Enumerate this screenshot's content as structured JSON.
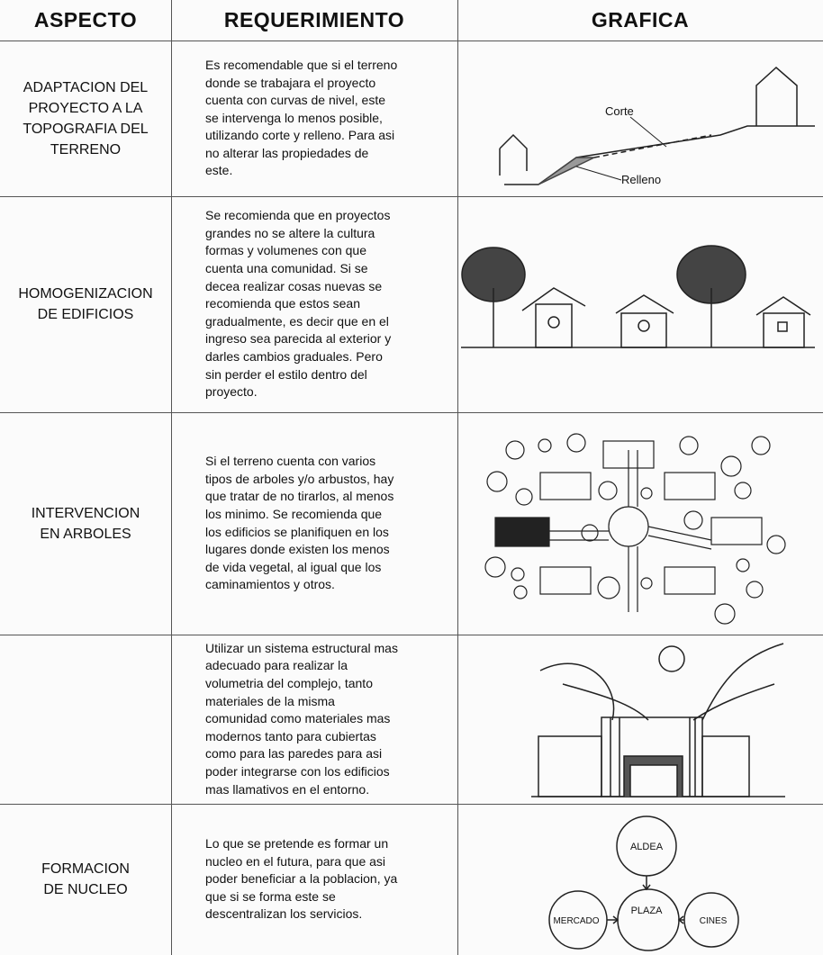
{
  "header": {
    "aspect": "ASPECTO",
    "requirement": "REQUERIMIENTO",
    "graphic": "GRAFICA"
  },
  "rows": [
    {
      "aspect": [
        "ADAPTACION DEL",
        "PROYECTO A LA",
        "TOPOGRAFIA DEL",
        "TERRENO"
      ],
      "requirement": [
        "Es recomendable que si el terreno",
        "donde se trabajara el proyecto",
        "cuenta con curvas de nivel, este",
        "se intervenga lo menos posible,",
        "utilizando corte y relleno. Para asi",
        "no alterar las propiedades de",
        "este."
      ],
      "graphic_labels": [
        "Corte",
        "Relleno"
      ]
    },
    {
      "aspect": [
        "HOMOGENIZACION",
        "DE EDIFICIOS"
      ],
      "requirement": [
        "Se recomienda que en proyectos",
        "grandes no se altere la cultura",
        "formas y volumenes con que",
        "cuenta una comunidad. Si se",
        "decea realizar cosas nuevas se",
        "recomienda que estos sean",
        "gradualmente, es decir que en el",
        "ingreso sea parecida al exterior y",
        "darles cambios graduales. Pero",
        "sin perder el estilo dentro del",
        "proyecto."
      ]
    },
    {
      "aspect": [
        "INTERVENCION",
        "EN ARBOLES"
      ],
      "requirement": [
        "Si el terreno cuenta con varios",
        "tipos de arboles y/o arbustos, hay",
        "que tratar de no tirarlos, al menos",
        "los minimo. Se recomienda que",
        "los edificios se planifiquen en los",
        "lugares donde existen los menos",
        "de vida vegetal, al igual que los",
        "caminamientos y otros."
      ]
    },
    {
      "requirement": [
        "Utilizar un sistema estructural mas",
        "adecuado para realizar la",
        "volumetria del complejo, tanto",
        "materiales de la misma",
        "comunidad como materiales mas",
        "modernos tanto para cubiertas",
        "como para las paredes para asi",
        "poder integrarse con los edificios",
        "mas llamativos en el entorno."
      ]
    },
    {
      "aspect": [
        "FORMACION",
        "DE NUCLEO"
      ],
      "requirement": [
        "Lo que se pretende es formar un",
        "nucleo en el futura, para que asi",
        "poder beneficiar a la poblacion, ya",
        "que si se forma este se",
        "descentralizan los servicios."
      ],
      "graphic_labels": [
        "ALDEA",
        "PLAZA",
        "MERCADO",
        "CINES"
      ]
    }
  ]
}
